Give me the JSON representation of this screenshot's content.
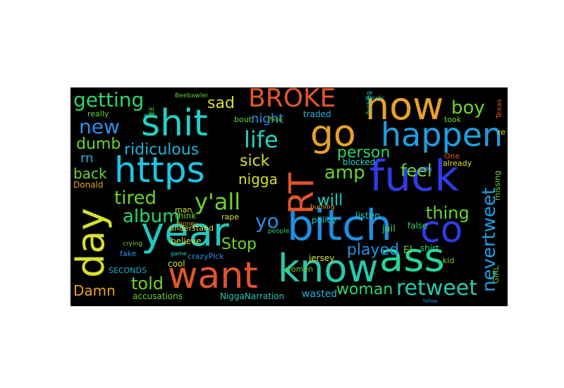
{
  "words": [
    {
      "id": "bitch",
      "text": "bitch",
      "color": "#1f8fe0"
    },
    {
      "id": "https",
      "text": "https",
      "color": "#1cc6e6"
    },
    {
      "id": "year",
      "text": "year",
      "color": "#22c7c2"
    },
    {
      "id": "shit",
      "text": "shit",
      "color": "#1fd1c7"
    },
    {
      "id": "now",
      "text": "now",
      "color": "#e8a12a"
    },
    {
      "id": "happen",
      "text": "happen",
      "color": "#1e9ee2"
    },
    {
      "id": "fuck",
      "text": "fuck",
      "color": "#2f3be6"
    },
    {
      "id": "know",
      "text": "know",
      "color": "#26c9ad"
    },
    {
      "id": "ass",
      "text": "ass",
      "color": "#27d59a"
    },
    {
      "id": "want",
      "text": "want",
      "color": "#e0552a"
    },
    {
      "id": "day",
      "text": "day",
      "color": "#d7e02e"
    },
    {
      "id": "rt",
      "text": "RT",
      "color": "#e0552a"
    },
    {
      "id": "co",
      "text": "co",
      "color": "#2f3be6"
    },
    {
      "id": "go",
      "text": "go",
      "color": "#e8a12a"
    },
    {
      "id": "broke",
      "text": "BROKE",
      "color": "#e0552a"
    },
    {
      "id": "retweet",
      "text": "retweet",
      "color": "#26c9ad"
    },
    {
      "id": "yall",
      "text": "y'all",
      "color": "#6ad42f"
    },
    {
      "id": "life",
      "text": "life",
      "color": "#1fd1c7"
    },
    {
      "id": "nevertweet",
      "text": "nevertweet",
      "color": "#1e9ee2"
    },
    {
      "id": "getting",
      "text": "getting",
      "color": "#2fd46a"
    },
    {
      "id": "new",
      "text": "new",
      "color": "#2a8fe6"
    },
    {
      "id": "ridiculous",
      "text": "ridiculous",
      "color": "#1fb3d8"
    },
    {
      "id": "tired",
      "text": "tired",
      "color": "#6ad42f"
    },
    {
      "id": "album",
      "text": "album",
      "color": "#2fd46a"
    },
    {
      "id": "told",
      "text": "told",
      "color": "#6ad42f"
    },
    {
      "id": "amp",
      "text": "amp",
      "color": "#6ad42f"
    },
    {
      "id": "boy",
      "text": "boy",
      "color": "#6ad42f"
    },
    {
      "id": "person",
      "text": "person",
      "color": "#2fd46a"
    },
    {
      "id": "feel",
      "text": "feel",
      "color": "#6ad42f"
    },
    {
      "id": "thing",
      "text": "thing",
      "color": "#6ad42f"
    },
    {
      "id": "woman",
      "text": "woman",
      "color": "#2fd46a"
    },
    {
      "id": "played",
      "text": "played",
      "color": "#2a8fe6"
    },
    {
      "id": "stop",
      "text": "Stop",
      "color": "#6ad42f"
    },
    {
      "id": "yo",
      "text": "yo",
      "color": "#2a8fe6"
    },
    {
      "id": "sick",
      "text": "sick",
      "color": "#d7e02e"
    },
    {
      "id": "nigga",
      "text": "nigga",
      "color": "#d7e02e"
    },
    {
      "id": "will",
      "text": "will",
      "color": "#1fd1c7"
    },
    {
      "id": "sad",
      "text": "sad",
      "color": "#d7e02e"
    },
    {
      "id": "night",
      "text": "night",
      "color": "#2a8fe6"
    },
    {
      "id": "dumb",
      "text": "dumb",
      "color": "#6ad42f"
    },
    {
      "id": "back",
      "text": "back",
      "color": "#6ad42f"
    },
    {
      "id": "rn",
      "text": "rn",
      "color": "#1fb3d8"
    },
    {
      "id": "damn",
      "text": "Damn",
      "color": "#e8a12a"
    },
    {
      "id": "niggananarration",
      "text": "NiggaNarration",
      "color": "#26c9ad"
    },
    {
      "id": "accusations",
      "text": "accusations",
      "color": "#6ad42f"
    },
    {
      "id": "wasted",
      "text": "wasted",
      "color": "#1fb3d8"
    },
    {
      "id": "listen",
      "text": "listen",
      "color": "#1fd1c7"
    },
    {
      "id": "blocked",
      "text": "blocked",
      "color": "#1fd1c7"
    },
    {
      "id": "policy",
      "text": "policy",
      "color": "#1fd1c7"
    },
    {
      "id": "traded",
      "text": "traded",
      "color": "#1fb3d8"
    },
    {
      "id": "burning",
      "text": "burning",
      "color": "#e8a12a"
    },
    {
      "id": "jail",
      "text": "jail",
      "color": "#2fd46a"
    },
    {
      "id": "false",
      "text": "false",
      "color": "#2fd46a"
    },
    {
      "id": "shirt",
      "text": "shirt",
      "color": "#2fd46a"
    },
    {
      "id": "el",
      "text": "El",
      "color": "#6ad42f"
    },
    {
      "id": "paso",
      "text": "Paso",
      "color": "#6ad42f"
    },
    {
      "id": "kid",
      "text": "kid",
      "color": "#6ad42f"
    },
    {
      "id": "girl",
      "text": "GIRL",
      "color": "#6ad42f"
    },
    {
      "id": "one",
      "text": "One",
      "color": "#e0552a"
    },
    {
      "id": "already",
      "text": "already",
      "color": "#d7e02e"
    },
    {
      "id": "took",
      "text": "took",
      "color": "#6ad42f"
    },
    {
      "id": "missing",
      "text": "missing",
      "color": "#6ad42f"
    },
    {
      "id": "texas",
      "text": "Texas",
      "color": "#e0552a"
    },
    {
      "id": "re",
      "text": "re",
      "color": "#d7e02e"
    },
    {
      "id": "believe",
      "text": "believe",
      "color": "#d7e02e"
    },
    {
      "id": "rape",
      "text": "rape",
      "color": "#d7e02e"
    },
    {
      "id": "cool",
      "text": "cool",
      "color": "#d7e02e"
    },
    {
      "id": "women",
      "text": "women",
      "color": "#6ad42f"
    },
    {
      "id": "people",
      "text": "people",
      "color": "#2fd46a"
    },
    {
      "id": "crazypick",
      "text": "crazyPick",
      "color": "#2a8fe6"
    },
    {
      "id": "fake",
      "text": "fake",
      "color": "#2a8fe6"
    },
    {
      "id": "seconds",
      "text": "SECONDS",
      "color": "#1fb3d8"
    },
    {
      "id": "really",
      "text": "really",
      "color": "#6ad42f"
    },
    {
      "id": "think",
      "text": "think",
      "color": "#6ad42f"
    },
    {
      "id": "understand",
      "text": "understand",
      "color": "#d7e02e"
    },
    {
      "id": "bout",
      "text": "bout",
      "color": "#6ad42f"
    },
    {
      "id": "beebawler",
      "text": "Beebawler",
      "color": "#6ad42f"
    },
    {
      "id": "donald",
      "text": "Donald",
      "color": "#e8a12a"
    },
    {
      "id": "man",
      "text": "man",
      "color": "#d7e02e"
    },
    {
      "id": "money",
      "text": "money",
      "color": "#e8a12a"
    },
    {
      "id": "crying",
      "text": "crying",
      "color": "#6ad42f"
    },
    {
      "id": "fucking",
      "text": "fucking",
      "color": "#1fd1c7"
    },
    {
      "id": "see",
      "text": "SEE",
      "color": "#6ad42f"
    },
    {
      "id": "jersey",
      "text": "jersey",
      "color": "#d7e02e"
    },
    {
      "id": "well",
      "text": "well",
      "color": "#1fd1c7"
    },
    {
      "id": "game",
      "text": "game",
      "color": "#1fd1c7"
    },
    {
      "id": "literally",
      "text": "literally",
      "color": "#1fd1c7"
    },
    {
      "id": "follow",
      "text": "follow",
      "color": "#2a8fe6"
    }
  ]
}
